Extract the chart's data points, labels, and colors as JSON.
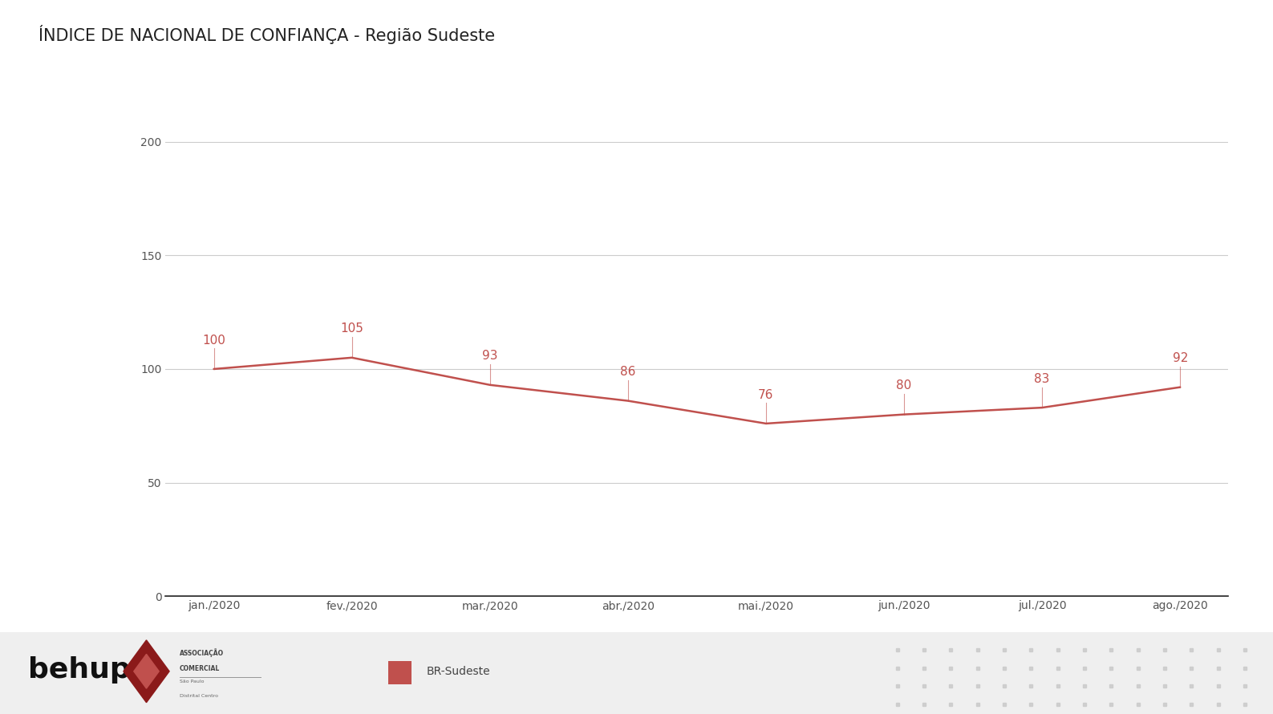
{
  "title": "ÍNDICE DE NACIONAL DE CONFIANÇA - Região Sudeste",
  "title_fontsize": 15,
  "categories": [
    "jan./2020",
    "fev./2020",
    "mar./2020",
    "abr./2020",
    "mai./2020",
    "jun./2020",
    "jul./2020",
    "ago./2020"
  ],
  "values": [
    100,
    105,
    93,
    86,
    76,
    80,
    83,
    92
  ],
  "line_color": "#c0504d",
  "line_width": 1.8,
  "annotation_color": "#c0504d",
  "annotation_fontsize": 11,
  "ylim": [
    0,
    220
  ],
  "yticks": [
    0,
    50,
    100,
    150,
    200
  ],
  "background_color": "#ffffff",
  "plot_bg_color": "#ffffff",
  "grid_color": "#cccccc",
  "tick_fontsize": 10,
  "legend_label": "BR-Sudeste",
  "legend_color": "#c0504d",
  "footer_bg_color": "#efefef",
  "dot_color": "#cccccc",
  "behup_color": "#111111",
  "acsp_text_color": "#444444",
  "acsp_sub_color": "#666666"
}
